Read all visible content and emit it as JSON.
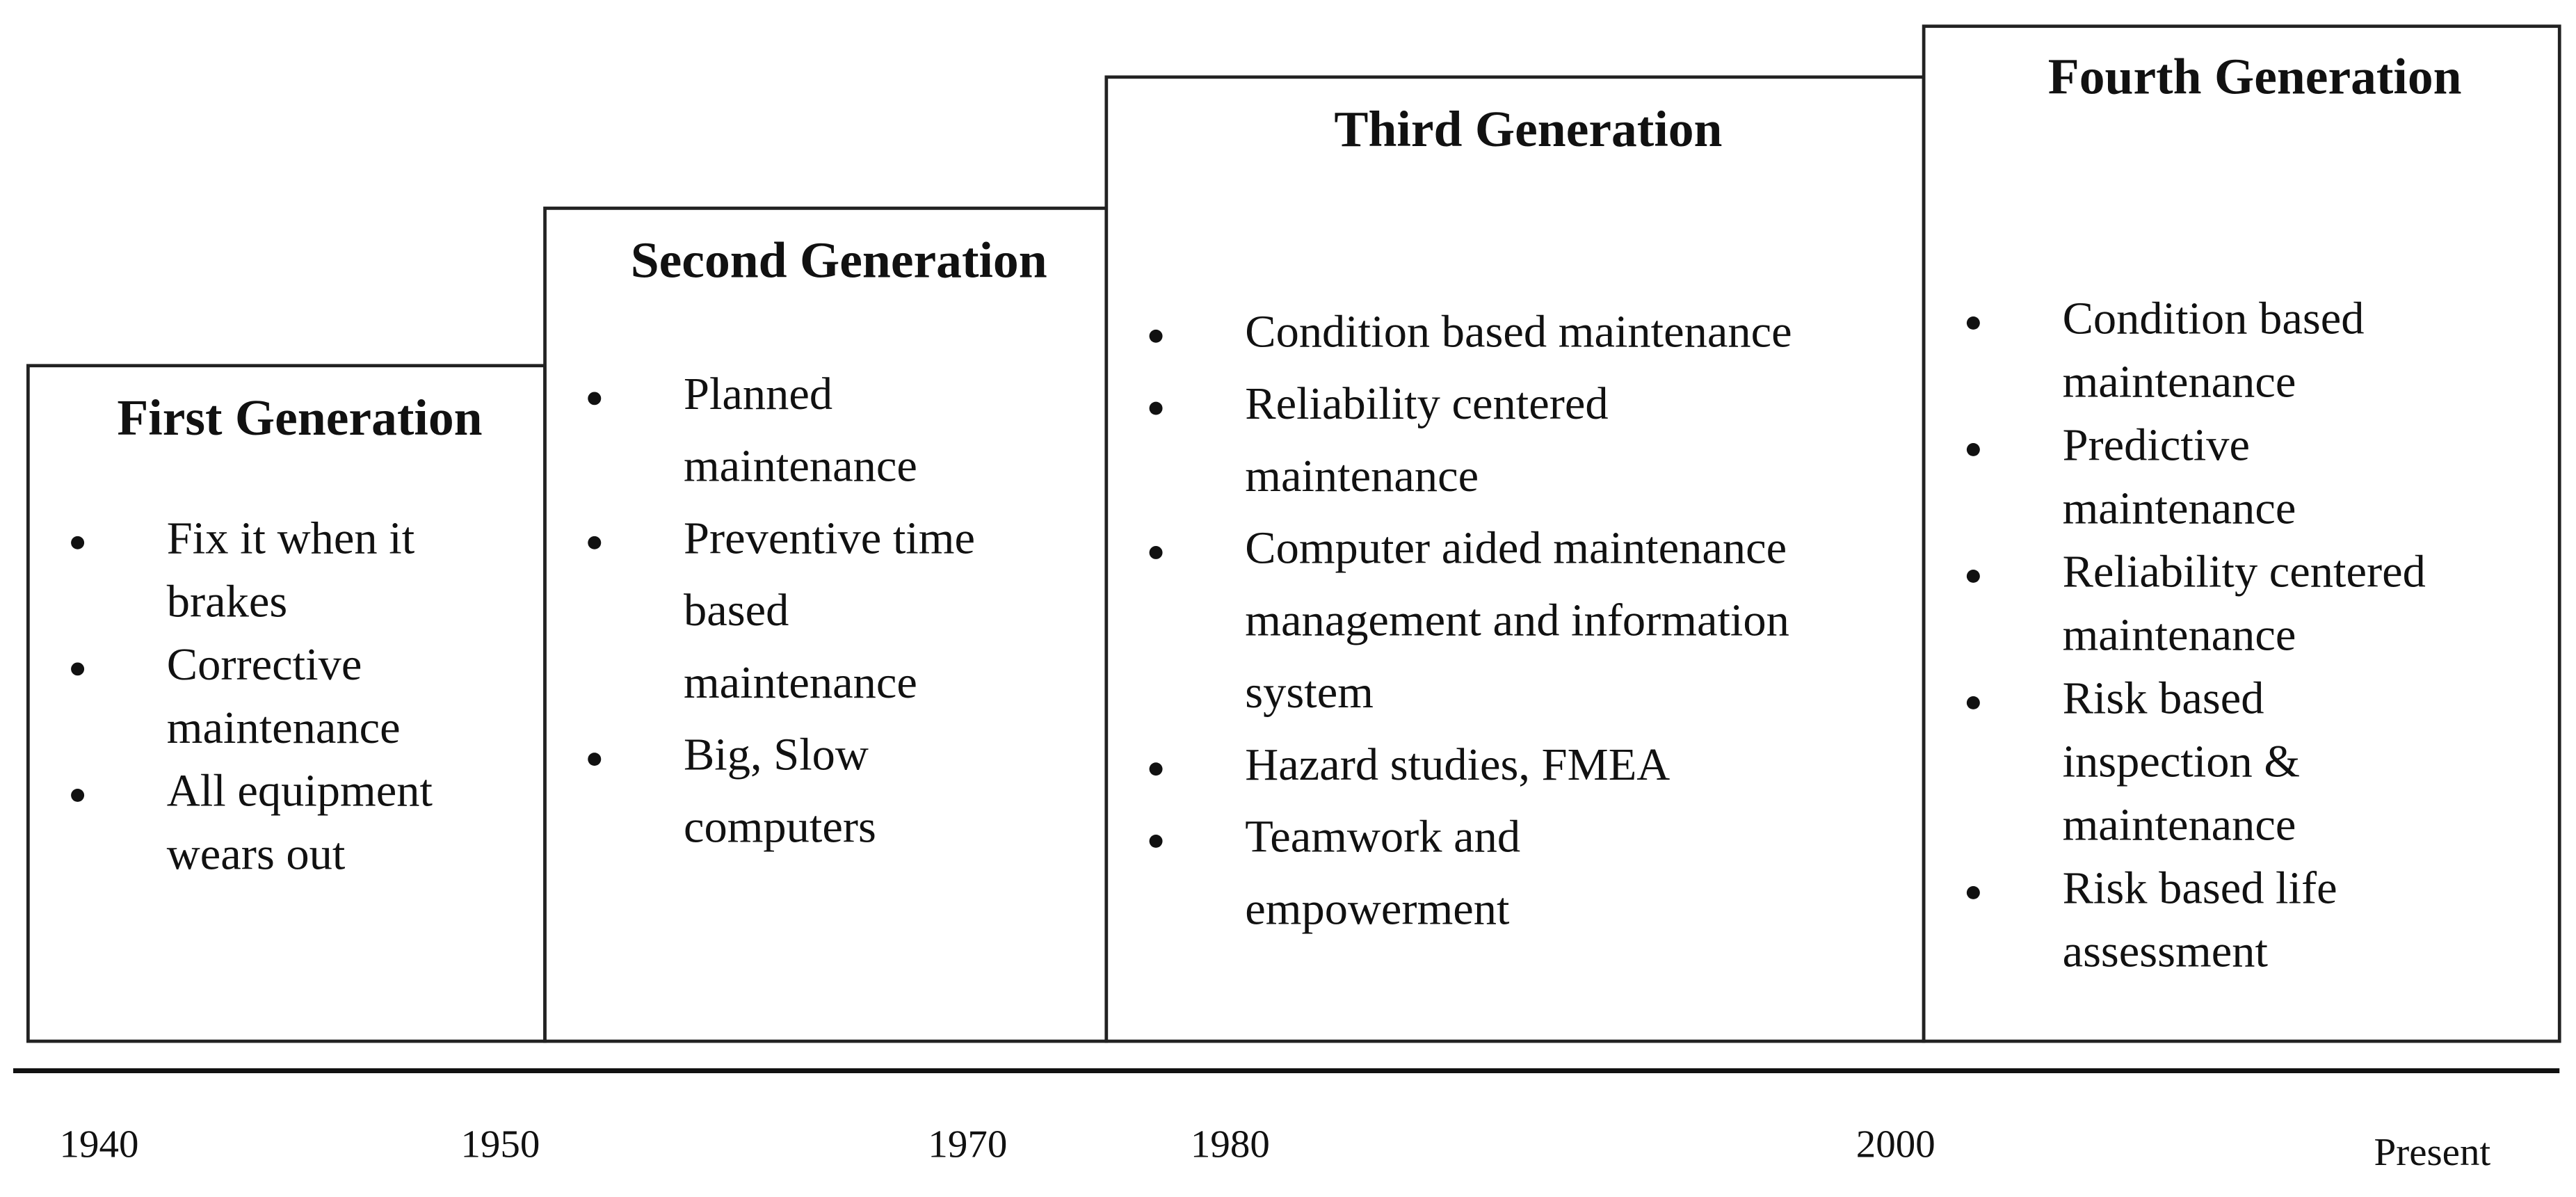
{
  "generations": [
    {
      "title": "First Generation",
      "items": [
        [
          "Fix it when it",
          "brakes"
        ],
        [
          "Corrective",
          "maintenance"
        ],
        [
          "All equipment",
          "wears out"
        ]
      ]
    },
    {
      "title": "Second Generation",
      "items": [
        [
          "Planned",
          "maintenance"
        ],
        [
          "Preventive time",
          "based",
          "maintenance"
        ],
        [
          "Big, Slow",
          "computers"
        ]
      ]
    },
    {
      "title": "Third Generation",
      "items": [
        [
          "Condition based maintenance"
        ],
        [
          "Reliability centered",
          "maintenance"
        ],
        [
          "Computer aided maintenance",
          "management and information",
          "system"
        ],
        [
          "Hazard studies, FMEA"
        ],
        [
          "Teamwork and",
          "empowerment"
        ]
      ]
    },
    {
      "title": "Fourth Generation",
      "items": [
        [
          "Condition based",
          "maintenance"
        ],
        [
          "Predictive",
          "maintenance"
        ],
        [
          "Reliability centered",
          "maintenance"
        ],
        [
          "Risk based",
          "inspection &",
          "maintenance"
        ],
        [
          "Risk based life",
          "assessment"
        ]
      ]
    }
  ],
  "timeline": [
    "1940",
    "1950",
    "1970",
    "1980",
    "2000",
    "Present"
  ]
}
